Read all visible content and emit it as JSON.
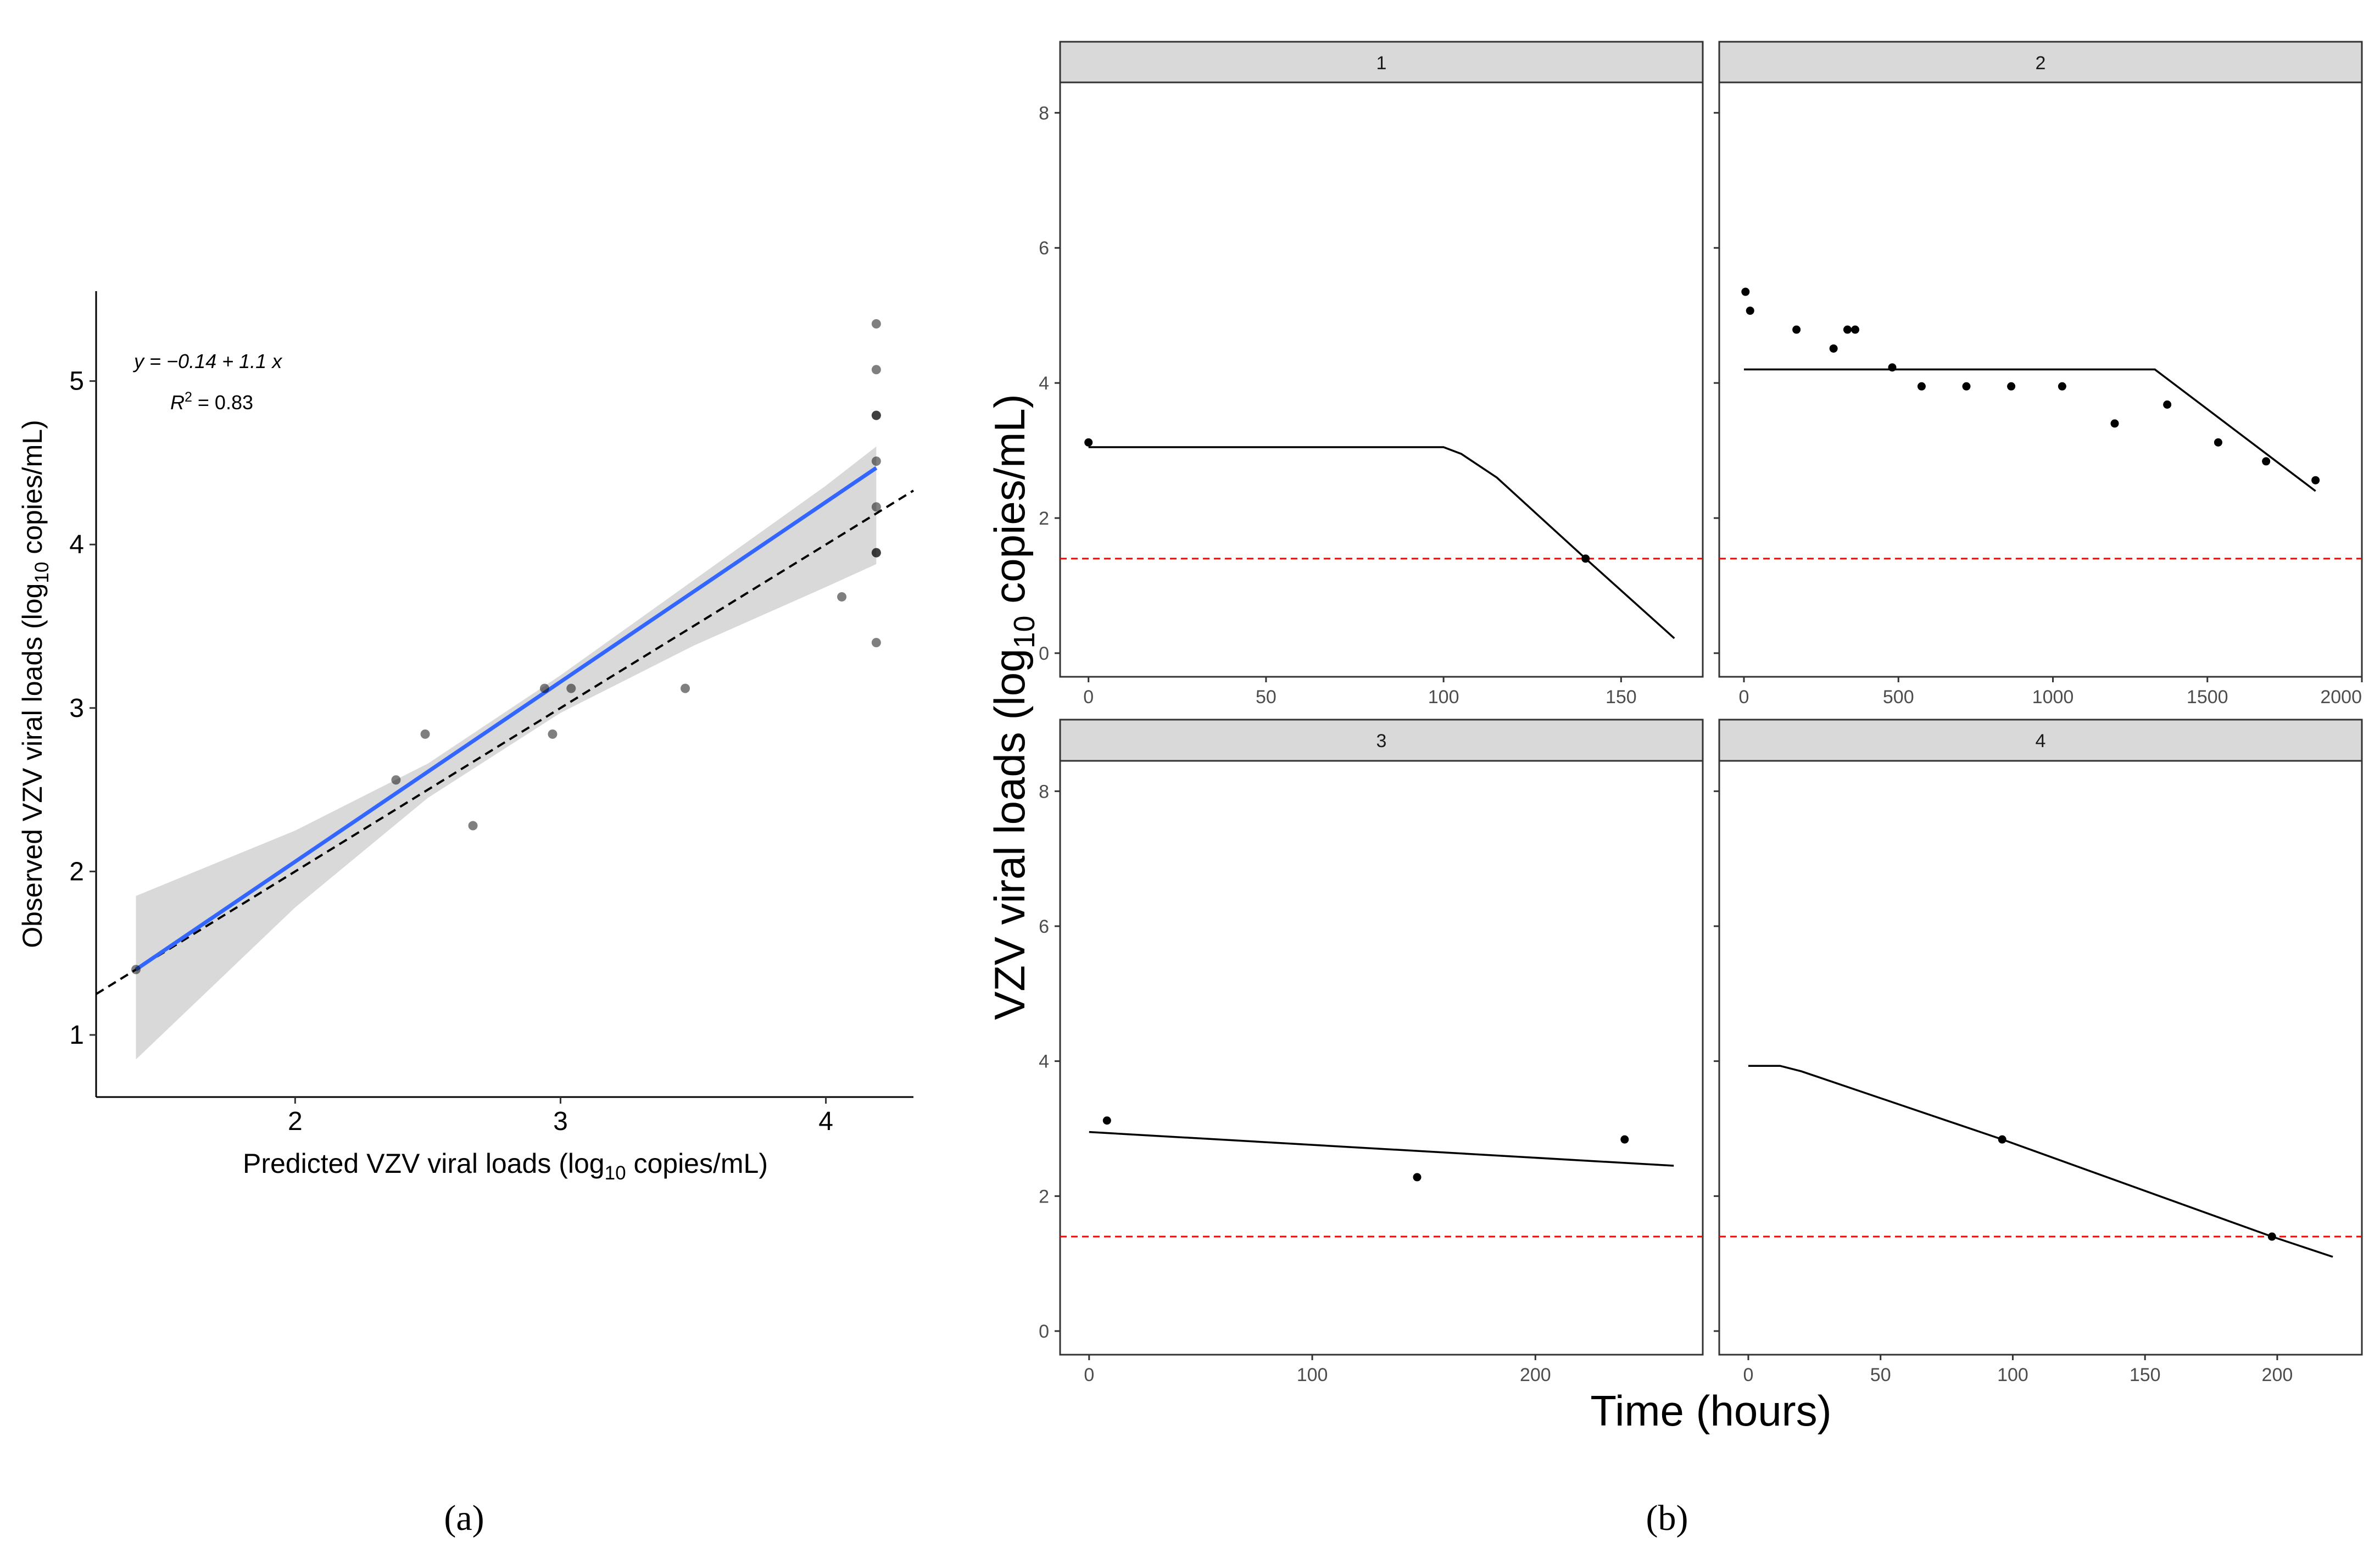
{
  "chart_data": [
    {
      "type": "scatter",
      "panel_label": "(a)",
      "annotations": {
        "equation": "y = −0.14 + 1.1 x",
        "r2_prefix": "R",
        "r2_sup": "2",
        "r2_value": " = 0.83"
      },
      "xlabel": {
        "pre": "Predicted VZV viral loads (log",
        "sub": "10",
        "post": " copies/mL)"
      },
      "ylabel": {
        "pre": "Observed VZV viral loads (log",
        "sub": "10",
        "post": " copies/mL)"
      },
      "xlim": [
        1.25,
        4.33
      ],
      "ylim": [
        0.62,
        5.55
      ],
      "xticks": [
        2,
        3,
        4
      ],
      "yticks": [
        1,
        2,
        3,
        4,
        5
      ],
      "points": [
        {
          "x": 1.4,
          "y": 1.4
        },
        {
          "x": 2.38,
          "y": 2.56
        },
        {
          "x": 2.49,
          "y": 2.84
        },
        {
          "x": 2.67,
          "y": 2.28
        },
        {
          "x": 2.94,
          "y": 3.12
        },
        {
          "x": 2.97,
          "y": 2.84
        },
        {
          "x": 3.04,
          "y": 3.12
        },
        {
          "x": 3.47,
          "y": 3.12
        },
        {
          "x": 4.06,
          "y": 3.68
        },
        {
          "x": 4.19,
          "y": 5.35
        },
        {
          "x": 4.19,
          "y": 5.07
        },
        {
          "x": 4.19,
          "y": 4.79
        },
        {
          "x": 4.19,
          "y": 4.79
        },
        {
          "x": 4.19,
          "y": 4.51
        },
        {
          "x": 4.19,
          "y": 4.23
        },
        {
          "x": 4.19,
          "y": 3.95
        },
        {
          "x": 4.19,
          "y": 3.95
        },
        {
          "x": 4.19,
          "y": 3.4
        }
      ],
      "fit": {
        "intercept": -0.14,
        "slope": 1.1,
        "x_range": [
          1.4,
          4.19
        ],
        "color": "#3366FF"
      },
      "confidence_band": [
        {
          "x": 1.4,
          "lo": 0.85,
          "hi": 1.85
        },
        {
          "x": 2.0,
          "lo": 1.78,
          "hi": 2.25
        },
        {
          "x": 2.5,
          "lo": 2.45,
          "hi": 2.66
        },
        {
          "x": 3.0,
          "lo": 2.97,
          "hi": 3.2
        },
        {
          "x": 3.5,
          "lo": 3.38,
          "hi": 3.78
        },
        {
          "x": 4.0,
          "lo": 3.74,
          "hi": 4.36
        },
        {
          "x": 4.19,
          "lo": 3.88,
          "hi": 4.6
        }
      ],
      "identity_line": {
        "x_range": [
          1.25,
          4.33
        ],
        "style": "dashed"
      }
    },
    {
      "type": "line",
      "panel_label": "(b)",
      "xlabel": "Time (hours)",
      "ylabel": {
        "pre": "VZV viral loads (log",
        "sub": "10",
        "post": " copies/mL)"
      },
      "ylim": [
        -0.35,
        8.45
      ],
      "yticks": [
        0,
        2,
        4,
        6,
        8
      ],
      "threshold": {
        "y": 1.4,
        "color": "#FF0000",
        "style": "dashed"
      },
      "facets": [
        {
          "label": "1",
          "xlim": [
            -8,
            173
          ],
          "xticks": [
            0,
            50,
            100,
            150
          ],
          "points": [
            {
              "x": 0,
              "y": 3.12
            },
            {
              "x": 140,
              "y": 1.4
            }
          ],
          "line": [
            {
              "x": 0,
              "y": 3.05
            },
            {
              "x": 100,
              "y": 3.05
            },
            {
              "x": 105,
              "y": 2.95
            },
            {
              "x": 115,
              "y": 2.6
            },
            {
              "x": 140,
              "y": 1.4
            },
            {
              "x": 165,
              "y": 0.22
            }
          ]
        },
        {
          "label": "2",
          "xlim": [
            -80,
            2000
          ],
          "xticks": [
            0,
            500,
            1000,
            1500,
            2000
          ],
          "points": [
            {
              "x": 5,
              "y": 5.35
            },
            {
              "x": 20,
              "y": 5.07
            },
            {
              "x": 170,
              "y": 4.79
            },
            {
              "x": 290,
              "y": 4.51
            },
            {
              "x": 335,
              "y": 4.79
            },
            {
              "x": 360,
              "y": 4.79
            },
            {
              "x": 480,
              "y": 4.23
            },
            {
              "x": 575,
              "y": 3.95
            },
            {
              "x": 720,
              "y": 3.95
            },
            {
              "x": 865,
              "y": 3.95
            },
            {
              "x": 1030,
              "y": 3.95
            },
            {
              "x": 1200,
              "y": 3.4
            },
            {
              "x": 1370,
              "y": 3.68
            },
            {
              "x": 1535,
              "y": 3.12
            },
            {
              "x": 1690,
              "y": 2.84
            },
            {
              "x": 1850,
              "y": 2.56
            }
          ],
          "line": [
            {
              "x": 0,
              "y": 4.2
            },
            {
              "x": 1330,
              "y": 4.2
            },
            {
              "x": 1850,
              "y": 2.4
            }
          ]
        },
        {
          "label": "3",
          "xlim": [
            -13,
            275
          ],
          "xticks": [
            0,
            100,
            200
          ],
          "points": [
            {
              "x": 8,
              "y": 3.12
            },
            {
              "x": 147,
              "y": 2.28
            },
            {
              "x": 240,
              "y": 2.84
            }
          ],
          "line": [
            {
              "x": 0,
              "y": 2.95
            },
            {
              "x": 262,
              "y": 2.45
            }
          ]
        },
        {
          "label": "4",
          "xlim": [
            -11,
            232
          ],
          "xticks": [
            0,
            50,
            100,
            150,
            200
          ],
          "points": [
            {
              "x": 96,
              "y": 2.84
            },
            {
              "x": 198,
              "y": 1.4
            }
          ],
          "line": [
            {
              "x": 0,
              "y": 3.93
            },
            {
              "x": 12,
              "y": 3.93
            },
            {
              "x": 20,
              "y": 3.85
            },
            {
              "x": 96,
              "y": 2.84
            },
            {
              "x": 198,
              "y": 1.4
            },
            {
              "x": 221,
              "y": 1.1
            }
          ]
        }
      ]
    }
  ]
}
